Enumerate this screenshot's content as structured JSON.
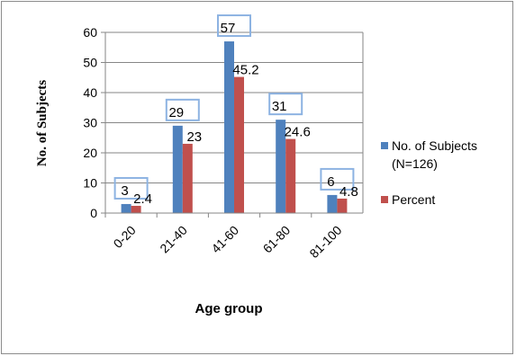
{
  "chart_data": {
    "type": "bar",
    "title": "",
    "xlabel": "Age group",
    "ylabel": "No. of Subjects",
    "categories": [
      "0-20",
      "21-40",
      "41-60",
      "61-80",
      "81-100"
    ],
    "series": [
      {
        "name": "No. of Subjects (N=126)",
        "legend_lines": [
          "No. of Subjects",
          "(N=126)"
        ],
        "color": "#4f81bd",
        "values": [
          3,
          29,
          57,
          31,
          6
        ],
        "labels": [
          "3",
          "29",
          "57",
          "31",
          "6"
        ]
      },
      {
        "name": "Percent",
        "legend_lines": [
          "Percent"
        ],
        "color": "#c0504d",
        "values": [
          2.4,
          23,
          45.2,
          24.6,
          4.8
        ],
        "labels": [
          "2.4",
          "23",
          "45.2",
          "24.6",
          "4.8"
        ]
      }
    ],
    "ylim": [
      0,
      60
    ],
    "yticks": [
      "0",
      "10",
      "20",
      "30",
      "40",
      "50",
      "60"
    ],
    "grid": true,
    "legend_position": "right"
  }
}
